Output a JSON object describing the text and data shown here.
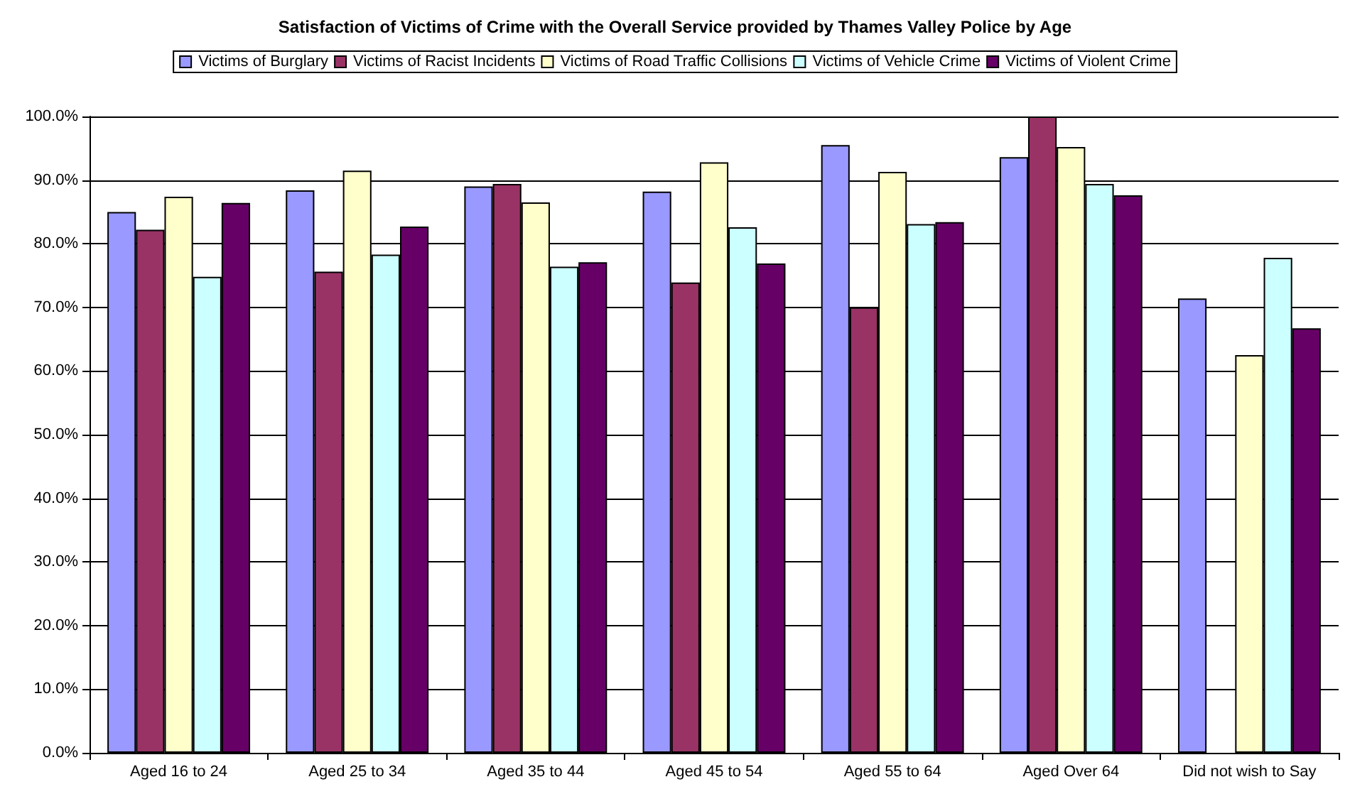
{
  "chart_data": {
    "type": "bar",
    "title": "Satisfaction of Victims of Crime with the Overall Service provided by Thames Valley Police by Age",
    "categories": [
      "Aged 16 to 24",
      "Aged 25 to 34",
      "Aged 35 to 44",
      "Aged 45 to 54",
      "Aged 55 to 64",
      "Aged Over 64",
      "Did not wish to Say"
    ],
    "series": [
      {
        "name": "Victims of Burglary",
        "color": "#9999ff",
        "values": [
          85.0,
          88.4,
          89.0,
          88.2,
          95.5,
          93.6,
          71.4
        ]
      },
      {
        "name": "Victims of Racist Incidents",
        "color": "#993366",
        "values": [
          82.2,
          75.6,
          89.4,
          73.9,
          70.0,
          100.0,
          null
        ]
      },
      {
        "name": "Victims of Road Traffic Collisions",
        "color": "#ffffcc",
        "values": [
          87.4,
          91.5,
          86.5,
          92.8,
          91.3,
          95.2,
          62.5
        ]
      },
      {
        "name": "Victims of Vehicle Crime",
        "color": "#ccffff",
        "values": [
          74.8,
          78.3,
          76.4,
          82.6,
          83.1,
          89.4,
          77.8
        ]
      },
      {
        "name": "Victims of Violent Crime",
        "color": "#660066",
        "values": [
          86.4,
          82.7,
          77.1,
          76.9,
          83.4,
          87.6,
          66.7
        ]
      }
    ],
    "ylim": [
      0,
      100
    ],
    "yticks": [
      {
        "value": 0,
        "label": "0.0%"
      },
      {
        "value": 10,
        "label": "10.0%"
      },
      {
        "value": 20,
        "label": "20.0%"
      },
      {
        "value": 30,
        "label": "30.0%"
      },
      {
        "value": 40,
        "label": "40.0%"
      },
      {
        "value": 50,
        "label": "50.0%"
      },
      {
        "value": 60,
        "label": "60.0%"
      },
      {
        "value": 70,
        "label": "70.0%"
      },
      {
        "value": 80,
        "label": "80.0%"
      },
      {
        "value": 90,
        "label": "90.0%"
      },
      {
        "value": 100,
        "label": "100.0%"
      }
    ],
    "grid": "y",
    "legend": "top"
  }
}
